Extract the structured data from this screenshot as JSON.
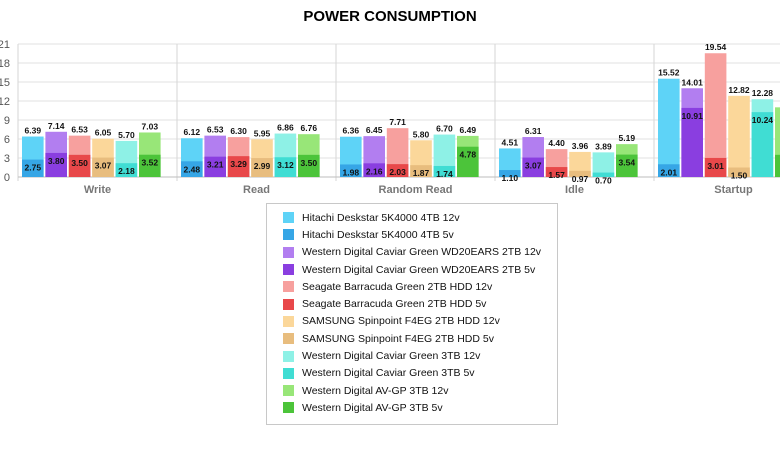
{
  "chart_data": {
    "type": "bar",
    "title": "POWER CONSUMPTION",
    "categories": [
      "Write",
      "Read",
      "Random Read",
      "Idle",
      "Startup"
    ],
    "ylim": [
      0,
      21
    ],
    "yticks": [
      "0",
      "3",
      "6",
      "9",
      "12",
      "15",
      "18",
      "21"
    ],
    "grid": true,
    "legend_position": "bottom-center",
    "series": [
      {
        "name": "Hitachi Deskstar 5K4000 4TB 12v",
        "color": "#5ed3f7",
        "values": [
          6.39,
          6.12,
          6.36,
          4.51,
          15.52
        ]
      },
      {
        "name": "Hitachi Deskstar 5K4000 4TB 5v",
        "color": "#36a6e6",
        "values": [
          2.75,
          2.48,
          1.98,
          1.1,
          2.01
        ]
      },
      {
        "name": "Western Digital Caviar Green WD20EARS 2TB 12v",
        "color": "#b27ef0",
        "values": [
          7.14,
          6.53,
          6.45,
          6.31,
          14.01
        ]
      },
      {
        "name": "Western Digital Caviar Green WD20EARS 2TB 5v",
        "color": "#8a3ee0",
        "values": [
          3.8,
          3.21,
          2.16,
          3.07,
          10.91
        ]
      },
      {
        "name": "Seagate Barracuda Green 2TB HDD 12v",
        "color": "#f7a09e",
        "values": [
          6.53,
          6.3,
          7.71,
          4.4,
          19.54
        ]
      },
      {
        "name": "Seagate Barracuda Green 2TB HDD 5v",
        "color": "#e8484a",
        "values": [
          3.5,
          3.29,
          2.03,
          1.57,
          3.01
        ]
      },
      {
        "name": "SAMSUNG Spinpoint F4EG 2TB HDD 12v",
        "color": "#fbd79a",
        "values": [
          6.05,
          5.95,
          5.8,
          3.96,
          12.82
        ]
      },
      {
        "name": "SAMSUNG Spinpoint F4EG 2TB HDD 5v",
        "color": "#e8bd7e",
        "values": [
          3.07,
          2.99,
          1.87,
          0.97,
          1.5
        ]
      },
      {
        "name": "Western Digital Caviar Green 3TB 12v",
        "color": "#8ef1e6",
        "values": [
          5.7,
          6.86,
          6.7,
          3.89,
          12.28
        ]
      },
      {
        "name": "Western Digital Caviar Green 3TB 5v",
        "color": "#40ddd3",
        "values": [
          2.18,
          3.12,
          1.74,
          0.7,
          10.24
        ]
      },
      {
        "name": "Western Digital AV-GP 3TB 12v",
        "color": "#98e678",
        "values": [
          7.03,
          6.76,
          6.49,
          5.19,
          11.0
        ]
      },
      {
        "name": "Western Digital AV-GP 3TB 5v",
        "color": "#4cc43a",
        "values": [
          3.52,
          3.5,
          4.78,
          3.54,
          3.5
        ]
      }
    ],
    "value_labels_shown": {
      "hidden": [
        [
          10,
          4
        ],
        [
          11,
          4
        ]
      ]
    }
  }
}
